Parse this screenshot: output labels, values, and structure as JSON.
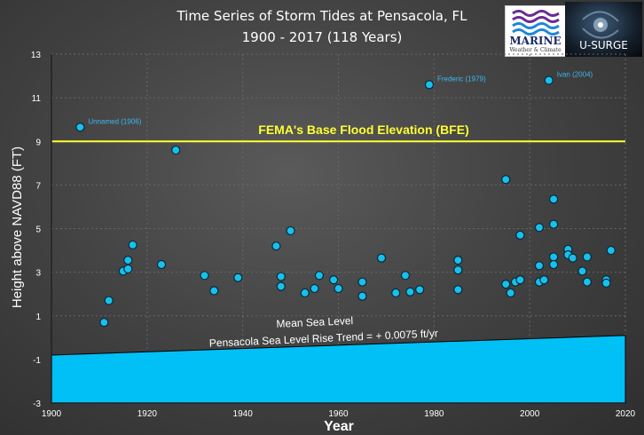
{
  "logos": {
    "marine": {
      "name": "MARINE",
      "tagline": "Weather & Climate"
    },
    "usurge": {
      "name": "U-SURGE"
    }
  },
  "colors": {
    "point_fill": "#18c0ec",
    "point_stroke": "#0a2a3a",
    "bfe_line": "#ffff33",
    "sea_level": "#00c0f6",
    "annotation": "#3ab8f0"
  },
  "chart_data": {
    "type": "scatter",
    "title": "Time Series of Storm Tides at Pensacola, FL",
    "subtitle": "1900 - 2017 (118 Years)",
    "xlabel": "Year",
    "ylabel": "Height above NAVD88 (FT)",
    "xlim": [
      1900,
      2020
    ],
    "ylim": [
      -3,
      13
    ],
    "xticks": [
      1900,
      1920,
      1940,
      1960,
      1980,
      2000,
      2020
    ],
    "yticks": [
      -3,
      -1,
      1,
      3,
      5,
      7,
      9,
      11,
      13
    ],
    "grid": true,
    "points": [
      {
        "x": 1906,
        "y": 9.65
      },
      {
        "x": 1911,
        "y": 0.7
      },
      {
        "x": 1912,
        "y": 1.7
      },
      {
        "x": 1915,
        "y": 3.05
      },
      {
        "x": 1916,
        "y": 3.55
      },
      {
        "x": 1916,
        "y": 3.15
      },
      {
        "x": 1917,
        "y": 4.25
      },
      {
        "x": 1923,
        "y": 3.35
      },
      {
        "x": 1926,
        "y": 8.6
      },
      {
        "x": 1932,
        "y": 2.85
      },
      {
        "x": 1934,
        "y": 2.15
      },
      {
        "x": 1939,
        "y": 2.75
      },
      {
        "x": 1947,
        "y": 4.2
      },
      {
        "x": 1948,
        "y": 2.8
      },
      {
        "x": 1948,
        "y": 2.35
      },
      {
        "x": 1950,
        "y": 4.9
      },
      {
        "x": 1953,
        "y": 2.05
      },
      {
        "x": 1955,
        "y": 2.25
      },
      {
        "x": 1956,
        "y": 2.85
      },
      {
        "x": 1959,
        "y": 2.65
      },
      {
        "x": 1960,
        "y": 2.25
      },
      {
        "x": 1965,
        "y": 2.55
      },
      {
        "x": 1965,
        "y": 1.9
      },
      {
        "x": 1969,
        "y": 3.65
      },
      {
        "x": 1972,
        "y": 2.05
      },
      {
        "x": 1974,
        "y": 2.85
      },
      {
        "x": 1975,
        "y": 2.1
      },
      {
        "x": 1977,
        "y": 2.2
      },
      {
        "x": 1979,
        "y": 11.6
      },
      {
        "x": 1985,
        "y": 3.55
      },
      {
        "x": 1985,
        "y": 3.1
      },
      {
        "x": 1985,
        "y": 2.2
      },
      {
        "x": 1995,
        "y": 7.25
      },
      {
        "x": 1995,
        "y": 2.45
      },
      {
        "x": 1996,
        "y": 2.05
      },
      {
        "x": 1997,
        "y": 2.55
      },
      {
        "x": 1998,
        "y": 2.65
      },
      {
        "x": 1998,
        "y": 4.7
      },
      {
        "x": 2002,
        "y": 5.05
      },
      {
        "x": 2002,
        "y": 3.3
      },
      {
        "x": 2002,
        "y": 2.55
      },
      {
        "x": 2003,
        "y": 2.65
      },
      {
        "x": 2004,
        "y": 11.8
      },
      {
        "x": 2005,
        "y": 6.35
      },
      {
        "x": 2005,
        "y": 5.2
      },
      {
        "x": 2005,
        "y": 3.7
      },
      {
        "x": 2005,
        "y": 3.35
      },
      {
        "x": 2008,
        "y": 4.05
      },
      {
        "x": 2008,
        "y": 3.8
      },
      {
        "x": 2009,
        "y": 3.65
      },
      {
        "x": 2011,
        "y": 3.05
      },
      {
        "x": 2012,
        "y": 3.7
      },
      {
        "x": 2012,
        "y": 2.55
      },
      {
        "x": 2016,
        "y": 2.65
      },
      {
        "x": 2016,
        "y": 2.5
      },
      {
        "x": 2017,
        "y": 4.0
      }
    ],
    "labeled_points": [
      {
        "label": "Unnamed (1906)",
        "x": 1906,
        "y": 9.65
      },
      {
        "label": "Frederic (1979)",
        "x": 1979,
        "y": 11.6
      },
      {
        "label": "Ivan (2004)",
        "x": 2004,
        "y": 11.8
      }
    ],
    "bfe": {
      "label": "FEMA's Base Flood Elevation (BFE)",
      "y": 9.0
    },
    "sea_level": {
      "label": "Mean Sea Level",
      "trend_label": "Pensacola Sea Level Rise Trend = + 0.0075 ft/yr",
      "start": [
        1900,
        -0.8
      ],
      "end": [
        2020,
        0.1
      ]
    }
  }
}
